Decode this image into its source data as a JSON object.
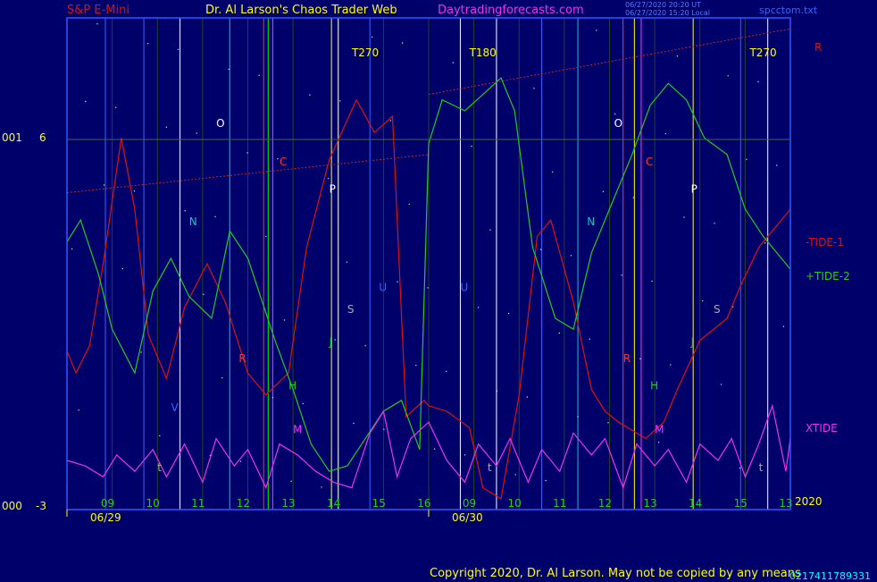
{
  "header": {
    "symbol": "S&P E-Mini",
    "site_title": "Dr. Al Larson's Chaos Trader Web",
    "site_url": "Daytradingforecasts.com",
    "stamp_ut": "06/27/2020 20:20 UT",
    "stamp_local": "06/27/2020 15:20 Local",
    "file_name": "spcctom.txt"
  },
  "y_axis": {
    "top_value": "6",
    "bottom_value": "-3",
    "top_prefix": "001",
    "bottom_prefix": "000"
  },
  "x_axis": {
    "day_labels": [
      "06/29",
      "06/30"
    ],
    "hour_labels": [
      "09",
      "10",
      "11",
      "12",
      "13",
      "14",
      "15",
      "16",
      "09",
      "10",
      "11",
      "12",
      "13",
      "14",
      "15",
      "13"
    ],
    "year_label": "2020"
  },
  "legend": {
    "r_label": "R",
    "tide1_label": "-TIDE-1",
    "tide2_label": "+TIDE-2",
    "xtide_label": "XTIDE"
  },
  "footer": {
    "copyright": "Copyright 2020, Dr. Al Larson. May not be copied by any means",
    "overflow_text": "0217411789331"
  },
  "colors": {
    "background": "#00006b",
    "frame": "#3355ff",
    "tide1": "#dd1111",
    "tide2": "#22cc22",
    "xtide": "#ee33ee",
    "symbol_text": "#dd1111",
    "title_text": "#ffff00",
    "url_text": "#ee33ee"
  },
  "chart_data": {
    "type": "line",
    "x_unit": "hour_index",
    "x_range": [
      0,
      16
    ],
    "ylim": [
      -3,
      6
    ],
    "series": [
      {
        "name": "-TIDE-1",
        "color": "#dd1111",
        "x": [
          0,
          0.2,
          0.5,
          0.8,
          1.2,
          1.5,
          1.8,
          2.2,
          2.6,
          3.1,
          3.5,
          4.0,
          4.4,
          4.9,
          5.3,
          5.8,
          6.4,
          6.8,
          7.2,
          7.5,
          7.9,
          8.0,
          8.4,
          8.9,
          9.2,
          9.6,
          10.0,
          10.4,
          10.7,
          11.2,
          11.6,
          11.9,
          12.2,
          12.6,
          12.8,
          13.2,
          13.5,
          14.0,
          14.6,
          14.9,
          15.3,
          15.6,
          16.0
        ],
        "values": [
          -0.1,
          -0.5,
          0.0,
          1.5,
          3.8,
          2.5,
          0.2,
          -0.6,
          0.7,
          1.5,
          0.8,
          -0.5,
          -0.9,
          -0.5,
          1.8,
          3.4,
          4.5,
          3.9,
          4.2,
          -1.3,
          -1.0,
          -1.1,
          -1.2,
          -1.5,
          -2.6,
          -2.8,
          -0.9,
          2.0,
          2.3,
          0.8,
          -0.8,
          -1.2,
          -1.4,
          -1.6,
          -1.7,
          -1.4,
          -0.8,
          0.1,
          0.5,
          1.1,
          1.8,
          2.1,
          2.5
        ]
      },
      {
        "name": "+TIDE-2",
        "color": "#22cc22",
        "x": [
          0,
          0.3,
          0.7,
          1.0,
          1.5,
          1.9,
          2.3,
          2.7,
          3.2,
          3.6,
          4.0,
          4.6,
          5.0,
          5.4,
          5.8,
          6.2,
          6.6,
          7.0,
          7.4,
          7.8,
          8.0,
          8.3,
          8.8,
          9.2,
          9.6,
          9.9,
          10.3,
          10.8,
          11.2,
          11.6,
          12.0,
          12.5,
          12.9,
          13.3,
          13.7,
          14.1,
          14.6,
          15.0,
          15.4,
          15.8,
          16.0
        ],
        "values": [
          1.9,
          2.3,
          1.3,
          0.3,
          -0.5,
          1.0,
          1.6,
          0.9,
          0.5,
          2.1,
          1.6,
          0.1,
          -0.8,
          -1.8,
          -2.3,
          -2.2,
          -1.7,
          -1.2,
          -1.0,
          -1.9,
          3.7,
          4.5,
          4.3,
          4.6,
          4.9,
          4.3,
          1.8,
          0.5,
          0.3,
          1.7,
          2.5,
          3.5,
          4.4,
          4.8,
          4.5,
          3.8,
          3.5,
          2.5,
          2.0,
          1.6,
          1.4
        ]
      },
      {
        "name": "XTIDE",
        "color": "#ee33ee",
        "x": [
          0,
          0.4,
          0.8,
          1.1,
          1.5,
          1.9,
          2.2,
          2.6,
          3.0,
          3.3,
          3.7,
          4.0,
          4.4,
          4.7,
          5.1,
          5.5,
          5.9,
          6.3,
          6.7,
          7.0,
          7.3,
          7.6,
          8.0,
          8.4,
          8.8,
          9.1,
          9.5,
          9.8,
          10.2,
          10.5,
          10.9,
          11.2,
          11.6,
          11.9,
          12.3,
          12.6,
          13.0,
          13.3,
          13.7,
          14.0,
          14.4,
          14.7,
          15.0,
          15.3,
          15.6,
          15.9,
          16.0
        ],
        "values": [
          -2.1,
          -2.2,
          -2.4,
          -2.0,
          -2.3,
          -1.9,
          -2.4,
          -1.8,
          -2.5,
          -1.7,
          -2.2,
          -1.9,
          -2.6,
          -1.8,
          -2.0,
          -2.3,
          -2.5,
          -2.6,
          -1.6,
          -1.2,
          -2.4,
          -1.7,
          -1.4,
          -2.1,
          -2.5,
          -1.8,
          -2.2,
          -1.7,
          -2.5,
          -1.9,
          -2.3,
          -1.6,
          -2.0,
          -1.7,
          -2.6,
          -1.8,
          -2.2,
          -1.9,
          -2.5,
          -1.8,
          -2.1,
          -1.7,
          -2.4,
          -1.8,
          -1.1,
          -2.3,
          -1.7
        ]
      }
    ],
    "point_labels": [
      {
        "label": "O",
        "x": 3.3,
        "y": 4.0
      },
      {
        "label": "C",
        "x": 4.7,
        "y": 3.3
      },
      {
        "label": "P",
        "x": 5.8,
        "y": 2.8
      },
      {
        "label": "N",
        "x": 2.7,
        "y": 2.2
      },
      {
        "label": "U",
        "x": 6.9,
        "y": 1.0
      },
      {
        "label": "S",
        "x": 6.2,
        "y": 0.6
      },
      {
        "label": "J",
        "x": 5.8,
        "y": 0.0
      },
      {
        "label": "R",
        "x": 3.8,
        "y": -0.3
      },
      {
        "label": "H",
        "x": 4.9,
        "y": -0.8
      },
      {
        "label": "V",
        "x": 2.3,
        "y": -1.2
      },
      {
        "label": "M",
        "x": 5.0,
        "y": -1.6
      },
      {
        "label": "t",
        "x": 2.0,
        "y": -2.3
      },
      {
        "label": "U",
        "x": 8.7,
        "y": 1.0
      },
      {
        "label": "O",
        "x": 12.1,
        "y": 4.0
      },
      {
        "label": "C",
        "x": 12.8,
        "y": 3.3
      },
      {
        "label": "P",
        "x": 13.8,
        "y": 2.8
      },
      {
        "label": "N",
        "x": 11.5,
        "y": 2.2
      },
      {
        "label": "S",
        "x": 14.3,
        "y": 0.6
      },
      {
        "label": "J",
        "x": 13.8,
        "y": 0.0
      },
      {
        "label": "R",
        "x": 12.3,
        "y": -0.3
      },
      {
        "label": "H",
        "x": 12.9,
        "y": -0.8
      },
      {
        "label": "M",
        "x": 13.0,
        "y": -1.6
      },
      {
        "label": "t",
        "x": 9.3,
        "y": -2.3
      },
      {
        "label": "t",
        "x": 15.3,
        "y": -2.3
      },
      {
        "label": "T270",
        "x": 6.3,
        "y": 5.3
      },
      {
        "label": "T180",
        "x": 8.9,
        "y": 5.3
      },
      {
        "label": "T270",
        "x": 15.1,
        "y": 5.3
      }
    ],
    "vertical_lines": [
      {
        "x": 0.85,
        "color": "#3366ff"
      },
      {
        "x": 1.7,
        "color": "#3366ff"
      },
      {
        "x": 2.5,
        "color": "#ffffff"
      },
      {
        "x": 3.6,
        "color": "#00cccc"
      },
      {
        "x": 4.35,
        "color": "#ff3333"
      },
      {
        "x": 4.45,
        "color": "#00ff00"
      },
      {
        "x": 4.55,
        "color": "#ff33ff"
      },
      {
        "x": 5.85,
        "color": "#ffff00"
      },
      {
        "x": 6.0,
        "color": "#ffffff"
      },
      {
        "x": 6.7,
        "color": "#3366ff"
      },
      {
        "x": 8.7,
        "color": "#ffffff"
      },
      {
        "x": 9.5,
        "color": "#ffffff"
      },
      {
        "x": 10.5,
        "color": "#3366ff"
      },
      {
        "x": 11.3,
        "color": "#00cccc"
      },
      {
        "x": 12.3,
        "color": "#ff3333"
      },
      {
        "x": 12.55,
        "color": "#ffff00"
      },
      {
        "x": 12.7,
        "color": "#ff33ff"
      },
      {
        "x": 13.85,
        "color": "#ffff00"
      },
      {
        "x": 14.9,
        "color": "#3366ff"
      },
      {
        "x": 15.5,
        "color": "#ffffff"
      }
    ]
  }
}
